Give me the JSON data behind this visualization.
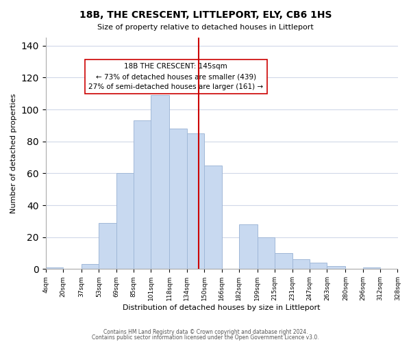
{
  "title": "18B, THE CRESCENT, LITTLEPORT, ELY, CB6 1HS",
  "subtitle": "Size of property relative to detached houses in Littleport",
  "xlabel": "Distribution of detached houses by size in Littleport",
  "ylabel": "Number of detached properties",
  "bar_edges": [
    4,
    20,
    37,
    53,
    69,
    85,
    101,
    118,
    134,
    150,
    166,
    182,
    199,
    215,
    231,
    247,
    263,
    280,
    296,
    312,
    328
  ],
  "bar_heights": [
    1,
    0,
    3,
    29,
    60,
    93,
    109,
    88,
    85,
    65,
    0,
    28,
    20,
    10,
    6,
    4,
    2,
    0,
    1,
    0
  ],
  "bar_color": "#c8d9f0",
  "bar_edgecolor": "#a0b8d8",
  "vline_x": 145,
  "vline_color": "#cc0000",
  "annotation_title": "18B THE CRESCENT: 145sqm",
  "annotation_line1": "← 73% of detached houses are smaller (439)",
  "annotation_line2": "27% of semi-detached houses are larger (161) →",
  "annotation_box_color": "#ffffff",
  "annotation_box_edgecolor": "#cc0000",
  "ylim": [
    0,
    145
  ],
  "yticks": [
    0,
    20,
    40,
    60,
    80,
    100,
    120,
    140
  ],
  "tick_labels": [
    "4sqm",
    "20sqm",
    "37sqm",
    "53sqm",
    "69sqm",
    "85sqm",
    "101sqm",
    "118sqm",
    "134sqm",
    "150sqm",
    "166sqm",
    "182sqm",
    "199sqm",
    "215sqm",
    "231sqm",
    "247sqm",
    "263sqm",
    "280sqm",
    "296sqm",
    "312sqm",
    "328sqm"
  ],
  "footer1": "Contains HM Land Registry data © Crown copyright and database right 2024.",
  "footer2": "Contains public sector information licensed under the Open Government Licence v3.0.",
  "bg_color": "#ffffff",
  "grid_color": "#d0d8e8"
}
